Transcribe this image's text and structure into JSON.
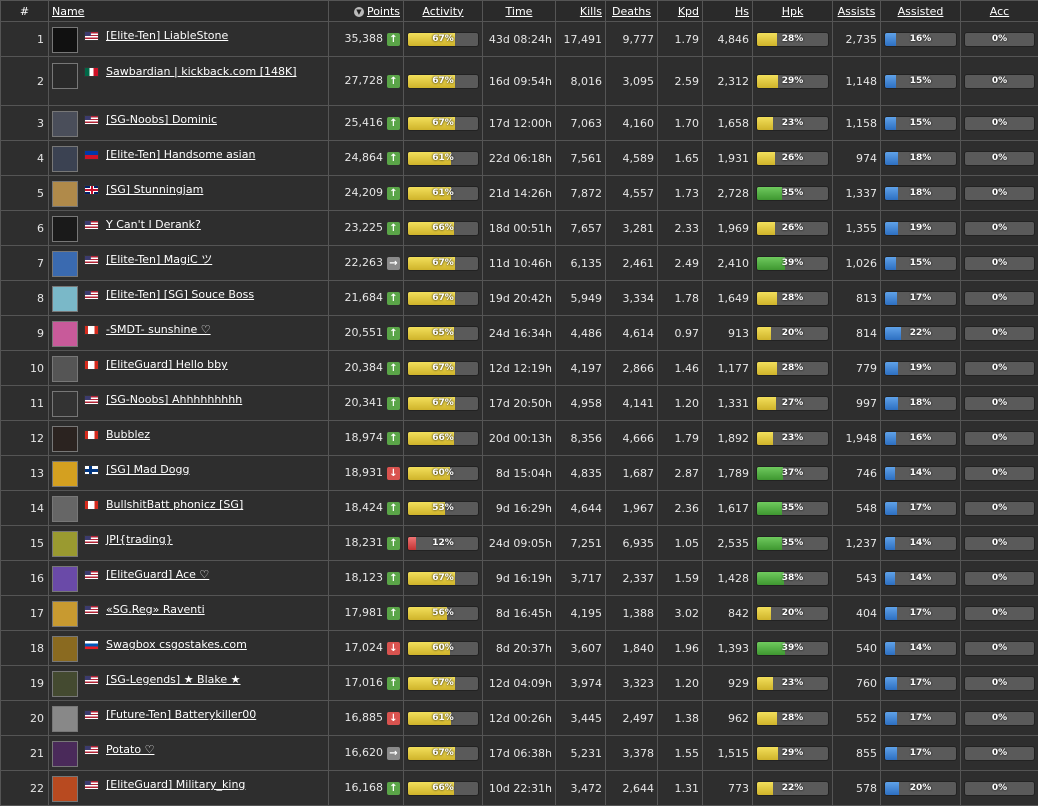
{
  "headers": {
    "idx": "#",
    "name": "Name",
    "points": "Points",
    "activity": "Activity",
    "time": "Time",
    "kills": "Kills",
    "deaths": "Deaths",
    "kpd": "Kpd",
    "hs": "Hs",
    "hpk": "Hpk",
    "assists": "Assists",
    "assisted": "Assisted",
    "acc": "Acc"
  },
  "sort_icon": "sort-desc-icon",
  "colors": {
    "bar_yellow": "#e6cb3f",
    "bar_green": "#4fb040",
    "bar_red": "#d94a4a",
    "bar_blue": "#3b82d6",
    "trend_up": "#5aa548",
    "trend_down": "#d9534f",
    "trend_same": "#8a8a8a"
  },
  "players": [
    {
      "rank": "1",
      "name": "[Elite-Ten] LiableStone",
      "flag": "us",
      "avatar": "#111",
      "points": "35,388",
      "trend": "up",
      "activity": 67,
      "time": "43d 08:24h",
      "kills": "17,491",
      "deaths": "9,777",
      "kpd": "1.79",
      "hs": "4,846",
      "hpk": 28,
      "assists": "2,735",
      "assisted": 16,
      "acc": 0
    },
    {
      "rank": "2",
      "name": "Sawbardian | kickback.com [148K]",
      "flag": "mx",
      "avatar": "#2a2a2a",
      "points": "27,728",
      "trend": "up",
      "activity": 67,
      "time": "16d 09:54h",
      "kills": "8,016",
      "deaths": "3,095",
      "kpd": "2.59",
      "hs": "2,312",
      "hpk": 29,
      "assists": "1,148",
      "assisted": 15,
      "acc": 0
    },
    {
      "rank": "3",
      "name": "[SG-Noobs] Dominic",
      "flag": "us",
      "avatar": "#4a4e5a",
      "points": "25,416",
      "trend": "up",
      "activity": 67,
      "time": "17d 12:00h",
      "kills": "7,063",
      "deaths": "4,160",
      "kpd": "1.70",
      "hs": "1,658",
      "hpk": 23,
      "assists": "1,158",
      "assisted": 15,
      "acc": 0
    },
    {
      "rank": "4",
      "name": "[Elite-Ten] Handsome asian",
      "flag": "ph",
      "avatar": "#3b4252",
      "points": "24,864",
      "trend": "up",
      "activity": 61,
      "time": "22d 06:18h",
      "kills": "7,561",
      "deaths": "4,589",
      "kpd": "1.65",
      "hs": "1,931",
      "hpk": 26,
      "assists": "974",
      "assisted": 18,
      "acc": 0
    },
    {
      "rank": "5",
      "name": "[SG] Stunningjam",
      "flag": "gb",
      "avatar": "#b08a4a",
      "points": "24,209",
      "trend": "up",
      "activity": 61,
      "time": "21d 14:26h",
      "kills": "7,872",
      "deaths": "4,557",
      "kpd": "1.73",
      "hs": "2,728",
      "hpk": 35,
      "assists": "1,337",
      "assisted": 18,
      "acc": 0
    },
    {
      "rank": "6",
      "name": "Y Can't I Derank?",
      "flag": "us",
      "avatar": "#1a1a1a",
      "points": "23,225",
      "trend": "up",
      "activity": 66,
      "time": "18d 00:51h",
      "kills": "7,657",
      "deaths": "3,281",
      "kpd": "2.33",
      "hs": "1,969",
      "hpk": 26,
      "assists": "1,355",
      "assisted": 19,
      "acc": 0
    },
    {
      "rank": "7",
      "name": "[Elite-Ten] MagiC ツ",
      "flag": "us",
      "avatar": "#3a6ab0",
      "points": "22,263",
      "trend": "same",
      "activity": 67,
      "time": "11d 10:46h",
      "kills": "6,135",
      "deaths": "2,461",
      "kpd": "2.49",
      "hs": "2,410",
      "hpk": 39,
      "assists": "1,026",
      "assisted": 15,
      "acc": 0
    },
    {
      "rank": "8",
      "name": "[Elite-Ten] [SG] Souce Boss",
      "flag": "us",
      "avatar": "#7ab8c8",
      "points": "21,684",
      "trend": "up",
      "activity": 67,
      "time": "19d 20:42h",
      "kills": "5,949",
      "deaths": "3,334",
      "kpd": "1.78",
      "hs": "1,649",
      "hpk": 28,
      "assists": "813",
      "assisted": 17,
      "acc": 0
    },
    {
      "rank": "9",
      "name": "-SMDT- sunshine ♡",
      "flag": "ca",
      "avatar": "#c85a9a",
      "points": "20,551",
      "trend": "up",
      "activity": 65,
      "time": "24d 16:34h",
      "kills": "4,486",
      "deaths": "4,614",
      "kpd": "0.97",
      "hs": "913",
      "hpk": 20,
      "assists": "814",
      "assisted": 22,
      "acc": 0
    },
    {
      "rank": "10",
      "name": "[EliteGuard] Hello bby",
      "flag": "ca",
      "avatar": "#555",
      "points": "20,384",
      "trend": "up",
      "activity": 67,
      "time": "12d 12:19h",
      "kills": "4,197",
      "deaths": "2,866",
      "kpd": "1.46",
      "hs": "1,177",
      "hpk": 28,
      "assists": "779",
      "assisted": 19,
      "acc": 0
    },
    {
      "rank": "11",
      "name": "[SG-Noobs] Ahhhhhhhhh",
      "flag": "us",
      "avatar": "#333",
      "points": "20,341",
      "trend": "up",
      "activity": 67,
      "time": "17d 20:50h",
      "kills": "4,958",
      "deaths": "4,141",
      "kpd": "1.20",
      "hs": "1,331",
      "hpk": 27,
      "assists": "997",
      "assisted": 18,
      "acc": 0
    },
    {
      "rank": "12",
      "name": "Bubblez",
      "flag": "ca",
      "avatar": "#2b2320",
      "points": "18,974",
      "trend": "up",
      "activity": 66,
      "time": "20d 00:13h",
      "kills": "8,356",
      "deaths": "4,666",
      "kpd": "1.79",
      "hs": "1,892",
      "hpk": 23,
      "assists": "1,948",
      "assisted": 16,
      "acc": 0
    },
    {
      "rank": "13",
      "name": "[SG] Mad Dogg",
      "flag": "fi",
      "avatar": "#d4a020",
      "points": "18,931",
      "trend": "down",
      "activity": 60,
      "time": "8d 15:04h",
      "kills": "4,835",
      "deaths": "1,687",
      "kpd": "2.87",
      "hs": "1,789",
      "hpk": 37,
      "assists": "746",
      "assisted": 14,
      "acc": 0
    },
    {
      "rank": "14",
      "name": "BullshitBatt phonicz [SG]",
      "flag": "ca",
      "avatar": "#666",
      "points": "18,424",
      "trend": "up",
      "activity": 53,
      "time": "9d 16:29h",
      "kills": "4,644",
      "deaths": "1,967",
      "kpd": "2.36",
      "hs": "1,617",
      "hpk": 35,
      "assists": "548",
      "assisted": 17,
      "acc": 0
    },
    {
      "rank": "15",
      "name": "JPI{trading}",
      "flag": "us",
      "avatar": "#9a9a30",
      "points": "18,231",
      "trend": "up",
      "activity": 12,
      "time": "24d 09:05h",
      "kills": "7,251",
      "deaths": "6,935",
      "kpd": "1.05",
      "hs": "2,535",
      "hpk": 35,
      "assists": "1,237",
      "assisted": 14,
      "acc": 0
    },
    {
      "rank": "16",
      "name": "[EliteGuard] Ace ♡",
      "flag": "us",
      "avatar": "#6a4aa8",
      "points": "18,123",
      "trend": "up",
      "activity": 67,
      "time": "9d 16:19h",
      "kills": "3,717",
      "deaths": "2,337",
      "kpd": "1.59",
      "hs": "1,428",
      "hpk": 38,
      "assists": "543",
      "assisted": 14,
      "acc": 0
    },
    {
      "rank": "17",
      "name": "«SG.Reg» Raventi",
      "flag": "us",
      "avatar": "#c89a30",
      "points": "17,981",
      "trend": "up",
      "activity": 56,
      "time": "8d 16:45h",
      "kills": "4,195",
      "deaths": "1,388",
      "kpd": "3.02",
      "hs": "842",
      "hpk": 20,
      "assists": "404",
      "assisted": 17,
      "acc": 0
    },
    {
      "rank": "18",
      "name": "Swagbox csgostakes.com",
      "flag": "si",
      "avatar": "#8a6a20",
      "points": "17,024",
      "trend": "down",
      "activity": 60,
      "time": "8d 20:37h",
      "kills": "3,607",
      "deaths": "1,840",
      "kpd": "1.96",
      "hs": "1,393",
      "hpk": 39,
      "assists": "540",
      "assisted": 14,
      "acc": 0
    },
    {
      "rank": "19",
      "name": "[SG-Legends] ★ Blake ★",
      "flag": "us",
      "avatar": "#444a30",
      "points": "17,016",
      "trend": "up",
      "activity": 67,
      "time": "12d 04:09h",
      "kills": "3,974",
      "deaths": "3,323",
      "kpd": "1.20",
      "hs": "929",
      "hpk": 23,
      "assists": "760",
      "assisted": 17,
      "acc": 0
    },
    {
      "rank": "20",
      "name": "[Future-Ten] Batterykiller00",
      "flag": "us",
      "avatar": "#888",
      "points": "16,885",
      "trend": "down",
      "activity": 61,
      "time": "12d 00:26h",
      "kills": "3,445",
      "deaths": "2,497",
      "kpd": "1.38",
      "hs": "962",
      "hpk": 28,
      "assists": "552",
      "assisted": 17,
      "acc": 0
    },
    {
      "rank": "21",
      "name": "Potato ♡",
      "flag": "us",
      "avatar": "#4a2a5a",
      "points": "16,620",
      "trend": "same",
      "activity": 67,
      "time": "17d 06:38h",
      "kills": "5,231",
      "deaths": "3,378",
      "kpd": "1.55",
      "hs": "1,515",
      "hpk": 29,
      "assists": "855",
      "assisted": 17,
      "acc": 0
    },
    {
      "rank": "22",
      "name": "[EliteGuard] Military_king",
      "flag": "us",
      "avatar": "#b84a20",
      "points": "16,168",
      "trend": "up",
      "activity": 66,
      "time": "10d 22:31h",
      "kills": "3,472",
      "deaths": "2,644",
      "kpd": "1.31",
      "hs": "773",
      "hpk": 22,
      "assists": "578",
      "assisted": 20,
      "acc": 0
    }
  ]
}
